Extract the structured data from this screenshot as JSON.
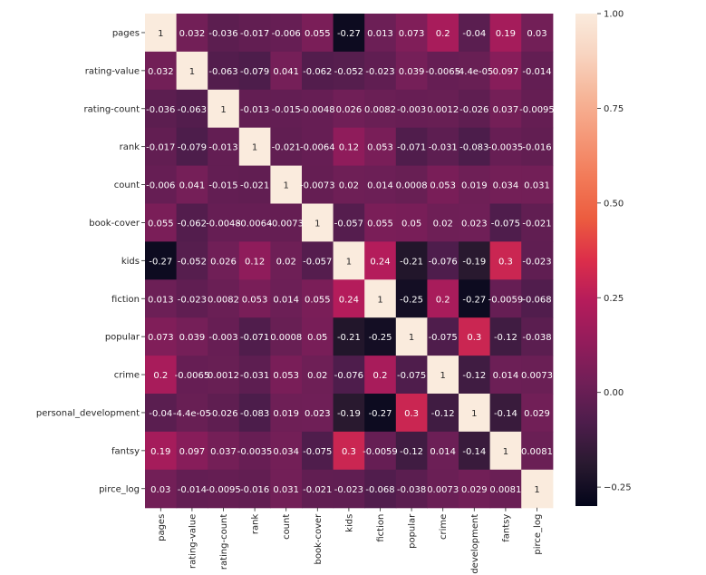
{
  "chart_data": {
    "type": "heatmap",
    "title": "",
    "row_labels": [
      "pages",
      "rating-value",
      "rating-count",
      "rank",
      "count",
      "book-cover",
      "kids",
      "fiction",
      "popular",
      "crime",
      "personal_development",
      "fantsy",
      "pirce_log"
    ],
    "col_labels": [
      "pages",
      "rating-value",
      "rating-count",
      "rank",
      "count",
      "book-cover",
      "kids",
      "fiction",
      "popular",
      "crime",
      "development",
      "fantsy",
      "pirce_log"
    ],
    "values": [
      [
        1,
        0.032,
        -0.036,
        -0.017,
        -0.006,
        0.055,
        -0.27,
        0.013,
        0.073,
        0.2,
        -0.04,
        0.19,
        0.03
      ],
      [
        0.032,
        1,
        -0.063,
        -0.079,
        0.041,
        -0.062,
        -0.052,
        -0.023,
        0.039,
        -0.0065,
        -4.4e-05,
        0.097,
        -0.014
      ],
      [
        -0.036,
        -0.063,
        1,
        -0.013,
        -0.015,
        -0.0048,
        0.026,
        0.0082,
        -0.003,
        0.0012,
        -0.026,
        0.037,
        -0.0095
      ],
      [
        -0.017,
        -0.079,
        -0.013,
        1,
        -0.021,
        -0.0064,
        0.12,
        0.053,
        -0.071,
        -0.031,
        -0.083,
        -0.0035,
        -0.016
      ],
      [
        -0.006,
        0.041,
        -0.015,
        -0.021,
        1,
        -0.0073,
        0.02,
        0.014,
        0.0008,
        0.053,
        0.019,
        0.034,
        0.031
      ],
      [
        0.055,
        -0.062,
        -0.0048,
        -0.0064,
        -0.0073,
        1,
        -0.057,
        0.055,
        0.05,
        0.02,
        0.023,
        -0.075,
        -0.021
      ],
      [
        -0.27,
        -0.052,
        0.026,
        0.12,
        0.02,
        -0.057,
        1,
        0.24,
        -0.21,
        -0.076,
        -0.19,
        0.3,
        -0.023
      ],
      [
        0.013,
        -0.023,
        0.0082,
        0.053,
        0.014,
        0.055,
        0.24,
        1,
        -0.25,
        0.2,
        -0.27,
        -0.0059,
        -0.068
      ],
      [
        0.073,
        0.039,
        -0.003,
        -0.071,
        0.0008,
        0.05,
        -0.21,
        -0.25,
        1,
        -0.075,
        0.3,
        -0.12,
        -0.038
      ],
      [
        0.2,
        -0.0065,
        0.0012,
        -0.031,
        0.053,
        0.02,
        -0.076,
        0.2,
        -0.075,
        1,
        -0.12,
        0.014,
        0.0073
      ],
      [
        -0.04,
        -4.4e-05,
        -0.026,
        -0.083,
        0.019,
        0.023,
        -0.19,
        -0.27,
        0.3,
        -0.12,
        1,
        -0.14,
        0.029
      ],
      [
        0.19,
        0.097,
        0.037,
        -0.0035,
        0.034,
        -0.075,
        0.3,
        -0.0059,
        -0.12,
        0.014,
        -0.14,
        1,
        0.0081
      ],
      [
        0.03,
        -0.014,
        -0.0095,
        -0.016,
        0.031,
        -0.021,
        -0.023,
        -0.068,
        -0.038,
        0.0073,
        0.029,
        0.0081,
        1
      ]
    ],
    "annotations": [
      [
        "1",
        "0.032",
        "-0.036",
        "-0.017",
        "-0.006",
        "0.055",
        "-0.27",
        "0.013",
        "0.073",
        "0.2",
        "-0.04",
        "0.19",
        "0.03"
      ],
      [
        "0.032",
        "1",
        "-0.063",
        "-0.079",
        "0.041",
        "-0.062",
        "-0.052",
        "-0.023",
        "0.039",
        "-0.0065",
        "-4.4e-05",
        "0.097",
        "-0.014"
      ],
      [
        "-0.036",
        "-0.063",
        "1",
        "-0.013",
        "-0.015",
        "-0.0048",
        "0.026",
        "0.0082",
        "-0.003",
        "0.0012",
        "-0.026",
        "0.037",
        "-0.0095"
      ],
      [
        "-0.017",
        "-0.079",
        "-0.013",
        "1",
        "-0.021",
        "-0.0064",
        "0.12",
        "0.053",
        "-0.071",
        "-0.031",
        "-0.083",
        "-0.0035",
        "-0.016"
      ],
      [
        "-0.006",
        "0.041",
        "-0.015",
        "-0.021",
        "1",
        "-0.0073",
        "0.02",
        "0.014",
        "0.0008",
        "0.053",
        "0.019",
        "0.034",
        "0.031"
      ],
      [
        "0.055",
        "-0.062",
        "-0.0048",
        "-0.0064",
        "-0.0073",
        "1",
        "-0.057",
        "0.055",
        "0.05",
        "0.02",
        "0.023",
        "-0.075",
        "-0.021"
      ],
      [
        "-0.27",
        "-0.052",
        "0.026",
        "0.12",
        "0.02",
        "-0.057",
        "1",
        "0.24",
        "-0.21",
        "-0.076",
        "-0.19",
        "0.3",
        "-0.023"
      ],
      [
        "0.013",
        "-0.023",
        "0.0082",
        "0.053",
        "0.014",
        "0.055",
        "0.24",
        "1",
        "-0.25",
        "0.2",
        "-0.27",
        "-0.0059",
        "-0.068"
      ],
      [
        "0.073",
        "0.039",
        "-0.003",
        "-0.071",
        "0.0008",
        "0.05",
        "-0.21",
        "-0.25",
        "1",
        "-0.075",
        "0.3",
        "-0.12",
        "-0.038"
      ],
      [
        "0.2",
        "-0.0065",
        "0.0012",
        "-0.031",
        "0.053",
        "0.02",
        "-0.076",
        "0.2",
        "-0.075",
        "1",
        "-0.12",
        "0.014",
        "0.0073"
      ],
      [
        "-0.04",
        "-4.4e-05",
        "-0.026",
        "-0.083",
        "0.019",
        "0.023",
        "-0.19",
        "-0.27",
        "0.3",
        "-0.12",
        "1",
        "-0.14",
        "0.029"
      ],
      [
        "0.19",
        "0.097",
        "0.037",
        "-0.0035",
        "0.034",
        "-0.075",
        "0.3",
        "-0.0059",
        "-0.12",
        "0.014",
        "-0.14",
        "1",
        "0.0081"
      ],
      [
        "0.03",
        "-0.014",
        "-0.0095",
        "-0.016",
        "0.031",
        "-0.021",
        "-0.023",
        "-0.068",
        "-0.038",
        "0.0073",
        "0.029",
        "0.0081",
        "1"
      ]
    ],
    "colorbar": {
      "vmin": -0.3,
      "vmax": 1.0,
      "ticks": [
        1.0,
        0.75,
        0.5,
        0.25,
        0.0,
        -0.25
      ],
      "tick_labels": [
        "1.00",
        "0.75",
        "0.50",
        "0.25",
        "0.00",
        "−0.25"
      ]
    },
    "colormap": "rocket",
    "colormap_stops": [
      "#03051a",
      "#28192f",
      "#4c1d4b",
      "#701f57",
      "#931c5b",
      "#b51c5b",
      "#dc2e4a",
      "#ec5c3f",
      "#f27a58",
      "#f59878",
      "#f6b699",
      "#f8d4c0",
      "#faebdd"
    ],
    "text_colors": {
      "dark": "#ffffff",
      "light": "#262626"
    },
    "grid": false
  }
}
